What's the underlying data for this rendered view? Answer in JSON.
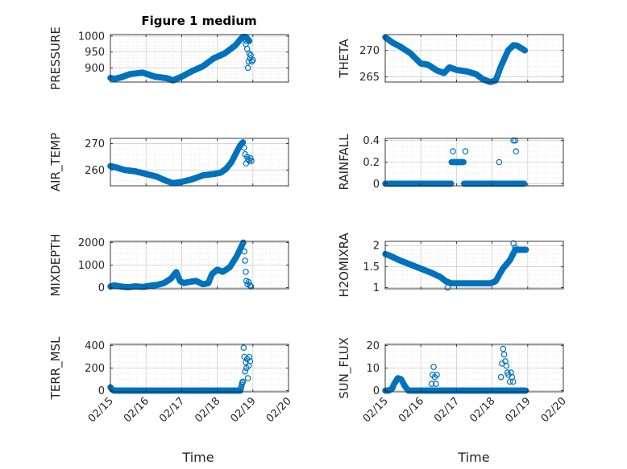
{
  "figure": {
    "title": "Figure 1 medium",
    "marker_color": "#0072bd",
    "grid_color": "#cfcfcf",
    "axis_color": "#262626"
  },
  "x_tick_labels": [
    "02/15",
    "02/16",
    "02/17",
    "02/18",
    "02/19",
    "02/20"
  ],
  "chart_data": [
    {
      "type": "scatter",
      "name": "pressure",
      "ylabel": "PRESSURE",
      "xlabel": "",
      "title": "Figure 1 medium",
      "xlim": [
        "02/15",
        "02/20"
      ],
      "ylim": [
        855,
        1005
      ],
      "yticks": [
        900,
        950,
        1000
      ],
      "minor_y": 10,
      "grid": true,
      "x_knots": [
        0,
        0.12,
        0.3,
        0.55,
        0.9,
        1.25,
        1.6,
        1.75,
        2.0,
        2.3,
        2.6,
        2.9,
        3.2,
        3.5,
        3.65,
        3.72,
        3.8,
        3.9
      ],
      "y_knots": [
        868,
        865,
        870,
        880,
        885,
        872,
        867,
        860,
        872,
        890,
        905,
        930,
        945,
        970,
        990,
        998,
        998,
        985
      ],
      "scatter_x": [
        3.8,
        3.82,
        3.84,
        3.86,
        3.88,
        3.9,
        3.92,
        3.94,
        3.97,
        4.0
      ],
      "scatter_y": [
        975,
        985,
        960,
        900,
        920,
        945,
        930,
        940,
        920,
        925
      ]
    },
    {
      "type": "scatter",
      "name": "theta",
      "ylabel": "THETA",
      "xlabel": "",
      "xlim": [
        "02/15",
        "02/20"
      ],
      "ylim": [
        264,
        273
      ],
      "yticks": [
        265,
        270
      ],
      "minor_y": 1,
      "grid": true,
      "x_knots": [
        0,
        0.2,
        0.4,
        0.7,
        1.0,
        1.2,
        1.45,
        1.65,
        1.8,
        2.0,
        2.3,
        2.55,
        2.75,
        2.95,
        3.1,
        3.25,
        3.45,
        3.6,
        3.7,
        3.8,
        3.92
      ],
      "y_knots": [
        272.5,
        271.5,
        270.8,
        269.5,
        267.5,
        267.3,
        266.2,
        265.7,
        266.8,
        266.3,
        266.0,
        265.5,
        264.5,
        264.0,
        264.3,
        267.0,
        270.0,
        271.0,
        270.9,
        270.5,
        270.0
      ],
      "scatter_x": [],
      "scatter_y": []
    },
    {
      "type": "scatter",
      "name": "air_temp",
      "ylabel": "AIR_TEMP",
      "xlabel": "",
      "xlim": [
        "02/15",
        "02/20"
      ],
      "ylim": [
        254,
        272
      ],
      "yticks": [
        260,
        270
      ],
      "minor_y": 2,
      "grid": true,
      "x_knots": [
        0,
        0.15,
        0.4,
        0.7,
        1.0,
        1.3,
        1.55,
        1.75,
        2.0,
        2.3,
        2.6,
        2.9,
        3.1,
        3.25,
        3.4,
        3.55,
        3.65,
        3.72
      ],
      "y_knots": [
        261.5,
        261,
        260,
        259.5,
        258.5,
        257.5,
        256,
        255,
        255.5,
        256.5,
        258,
        258.5,
        259,
        260.5,
        263,
        267,
        269.5,
        270.5
      ],
      "scatter_x": [
        3.75,
        3.78,
        3.81,
        3.84,
        3.87,
        3.9,
        3.93,
        3.96
      ],
      "scatter_y": [
        268.5,
        266,
        262.5,
        265,
        264,
        263.5,
        264.5,
        263.5
      ]
    },
    {
      "type": "scatter",
      "name": "rainfall",
      "ylabel": "RAINFALL",
      "xlabel": "",
      "xlim": [
        "02/15",
        "02/20"
      ],
      "ylim": [
        -0.02,
        0.42
      ],
      "yticks": [
        0,
        0.2,
        0.4
      ],
      "minor_y": 0.05,
      "grid": true,
      "x_knots": [
        0,
        1.85,
        1.86,
        2.2,
        2.21,
        3.35,
        3.36,
        3.44,
        3.45,
        3.9
      ],
      "y_knots": [
        0,
        0,
        0.2,
        0.2,
        0,
        0,
        0,
        0,
        0,
        0
      ],
      "scatter_x": [
        1.9,
        2.25,
        3.2,
        3.6,
        3.65,
        3.67
      ],
      "scatter_y": [
        0.3,
        0.3,
        0.2,
        0.4,
        0.4,
        0.3
      ]
    },
    {
      "type": "scatter",
      "name": "mixdepth",
      "ylabel": "MIXDEPTH",
      "xlabel": "",
      "xlim": [
        "02/15",
        "02/20"
      ],
      "ylim": [
        -50,
        2050
      ],
      "yticks": [
        0,
        1000,
        2000
      ],
      "minor_y": 250,
      "grid": true,
      "x_knots": [
        0,
        0.1,
        0.3,
        0.5,
        0.7,
        0.9,
        1.1,
        1.3,
        1.5,
        1.7,
        1.85,
        1.95,
        2.05,
        2.2,
        2.4,
        2.6,
        2.75,
        2.85,
        3.0,
        3.15,
        3.35,
        3.55,
        3.7,
        3.73
      ],
      "y_knots": [
        50,
        100,
        50,
        20,
        60,
        30,
        80,
        120,
        200,
        400,
        700,
        300,
        200,
        250,
        300,
        150,
        200,
        600,
        800,
        700,
        900,
        1400,
        1900,
        2000
      ],
      "scatter_x": [
        3.76,
        3.78,
        3.8,
        3.82,
        3.85,
        3.88,
        3.92,
        3.95
      ],
      "scatter_y": [
        1600,
        1200,
        700,
        300,
        150,
        250,
        100,
        50
      ]
    },
    {
      "type": "scatter",
      "name": "h2omixra",
      "ylabel": "H2OMIXRA",
      "xlabel": "",
      "xlim": [
        "02/15",
        "02/20"
      ],
      "ylim": [
        0.97,
        2.1
      ],
      "yticks": [
        1,
        1.5,
        2
      ],
      "minor_y": 0.1,
      "grid": true,
      "x_knots": [
        0,
        0.15,
        0.4,
        0.7,
        1.0,
        1.3,
        1.55,
        1.7,
        1.85,
        2.2,
        2.6,
        2.95,
        3.1,
        3.3,
        3.5,
        3.65,
        3.75,
        3.95
      ],
      "y_knots": [
        1.8,
        1.75,
        1.65,
        1.55,
        1.45,
        1.35,
        1.25,
        1.15,
        1.1,
        1.1,
        1.1,
        1.1,
        1.15,
        1.45,
        1.65,
        1.9,
        1.9,
        1.9
      ],
      "scatter_x": [
        1.75,
        3.6,
        3.65
      ],
      "scatter_y": [
        1.0,
        2.05,
        1.95
      ]
    },
    {
      "type": "scatter",
      "name": "terr_msl",
      "ylabel": "TERR_MSL",
      "xlabel": "Time",
      "xlim": [
        "02/15",
        "02/20"
      ],
      "ylim": [
        -10,
        410
      ],
      "yticks": [
        0,
        200,
        400
      ],
      "minor_y": 50,
      "grid": true,
      "x_knots": [
        0,
        0.05,
        0.1,
        0.2,
        3.65,
        3.7
      ],
      "y_knots": [
        30,
        10,
        0,
        0,
        0,
        70
      ],
      "scatter_x": [
        3.72,
        3.74,
        3.76,
        3.78,
        3.8,
        3.82,
        3.84,
        3.86,
        3.88,
        3.9,
        3.92
      ],
      "scatter_y": [
        80,
        380,
        300,
        170,
        250,
        200,
        280,
        110,
        220,
        300,
        260
      ]
    },
    {
      "type": "scatter",
      "name": "sun_flux",
      "ylabel": "SUN_FLUX",
      "xlabel": "Time",
      "xlim": [
        "02/15",
        "02/20"
      ],
      "ylim": [
        -0.5,
        20.5
      ],
      "yticks": [
        0,
        10,
        20
      ],
      "minor_y": 2.5,
      "grid": true,
      "x_knots": [
        0,
        0.1,
        0.2,
        0.25,
        0.35,
        0.45,
        0.55,
        0.65,
        3.2,
        3.45,
        3.6,
        3.7,
        3.95
      ],
      "y_knots": [
        0,
        0,
        1,
        3,
        5.5,
        5,
        2,
        0,
        0,
        0,
        0,
        0,
        0
      ],
      "scatter_x": [
        1.3,
        1.33,
        1.36,
        1.39,
        1.42,
        1.45,
        3.25,
        3.28,
        3.31,
        3.34,
        3.37,
        3.4,
        3.43,
        3.46,
        3.5,
        3.53,
        3.56,
        3.59
      ],
      "scatter_y": [
        3,
        7,
        10.5,
        6,
        3,
        7,
        6,
        12,
        18.5,
        16,
        13,
        11,
        8,
        7,
        4,
        8,
        6,
        4
      ]
    }
  ]
}
